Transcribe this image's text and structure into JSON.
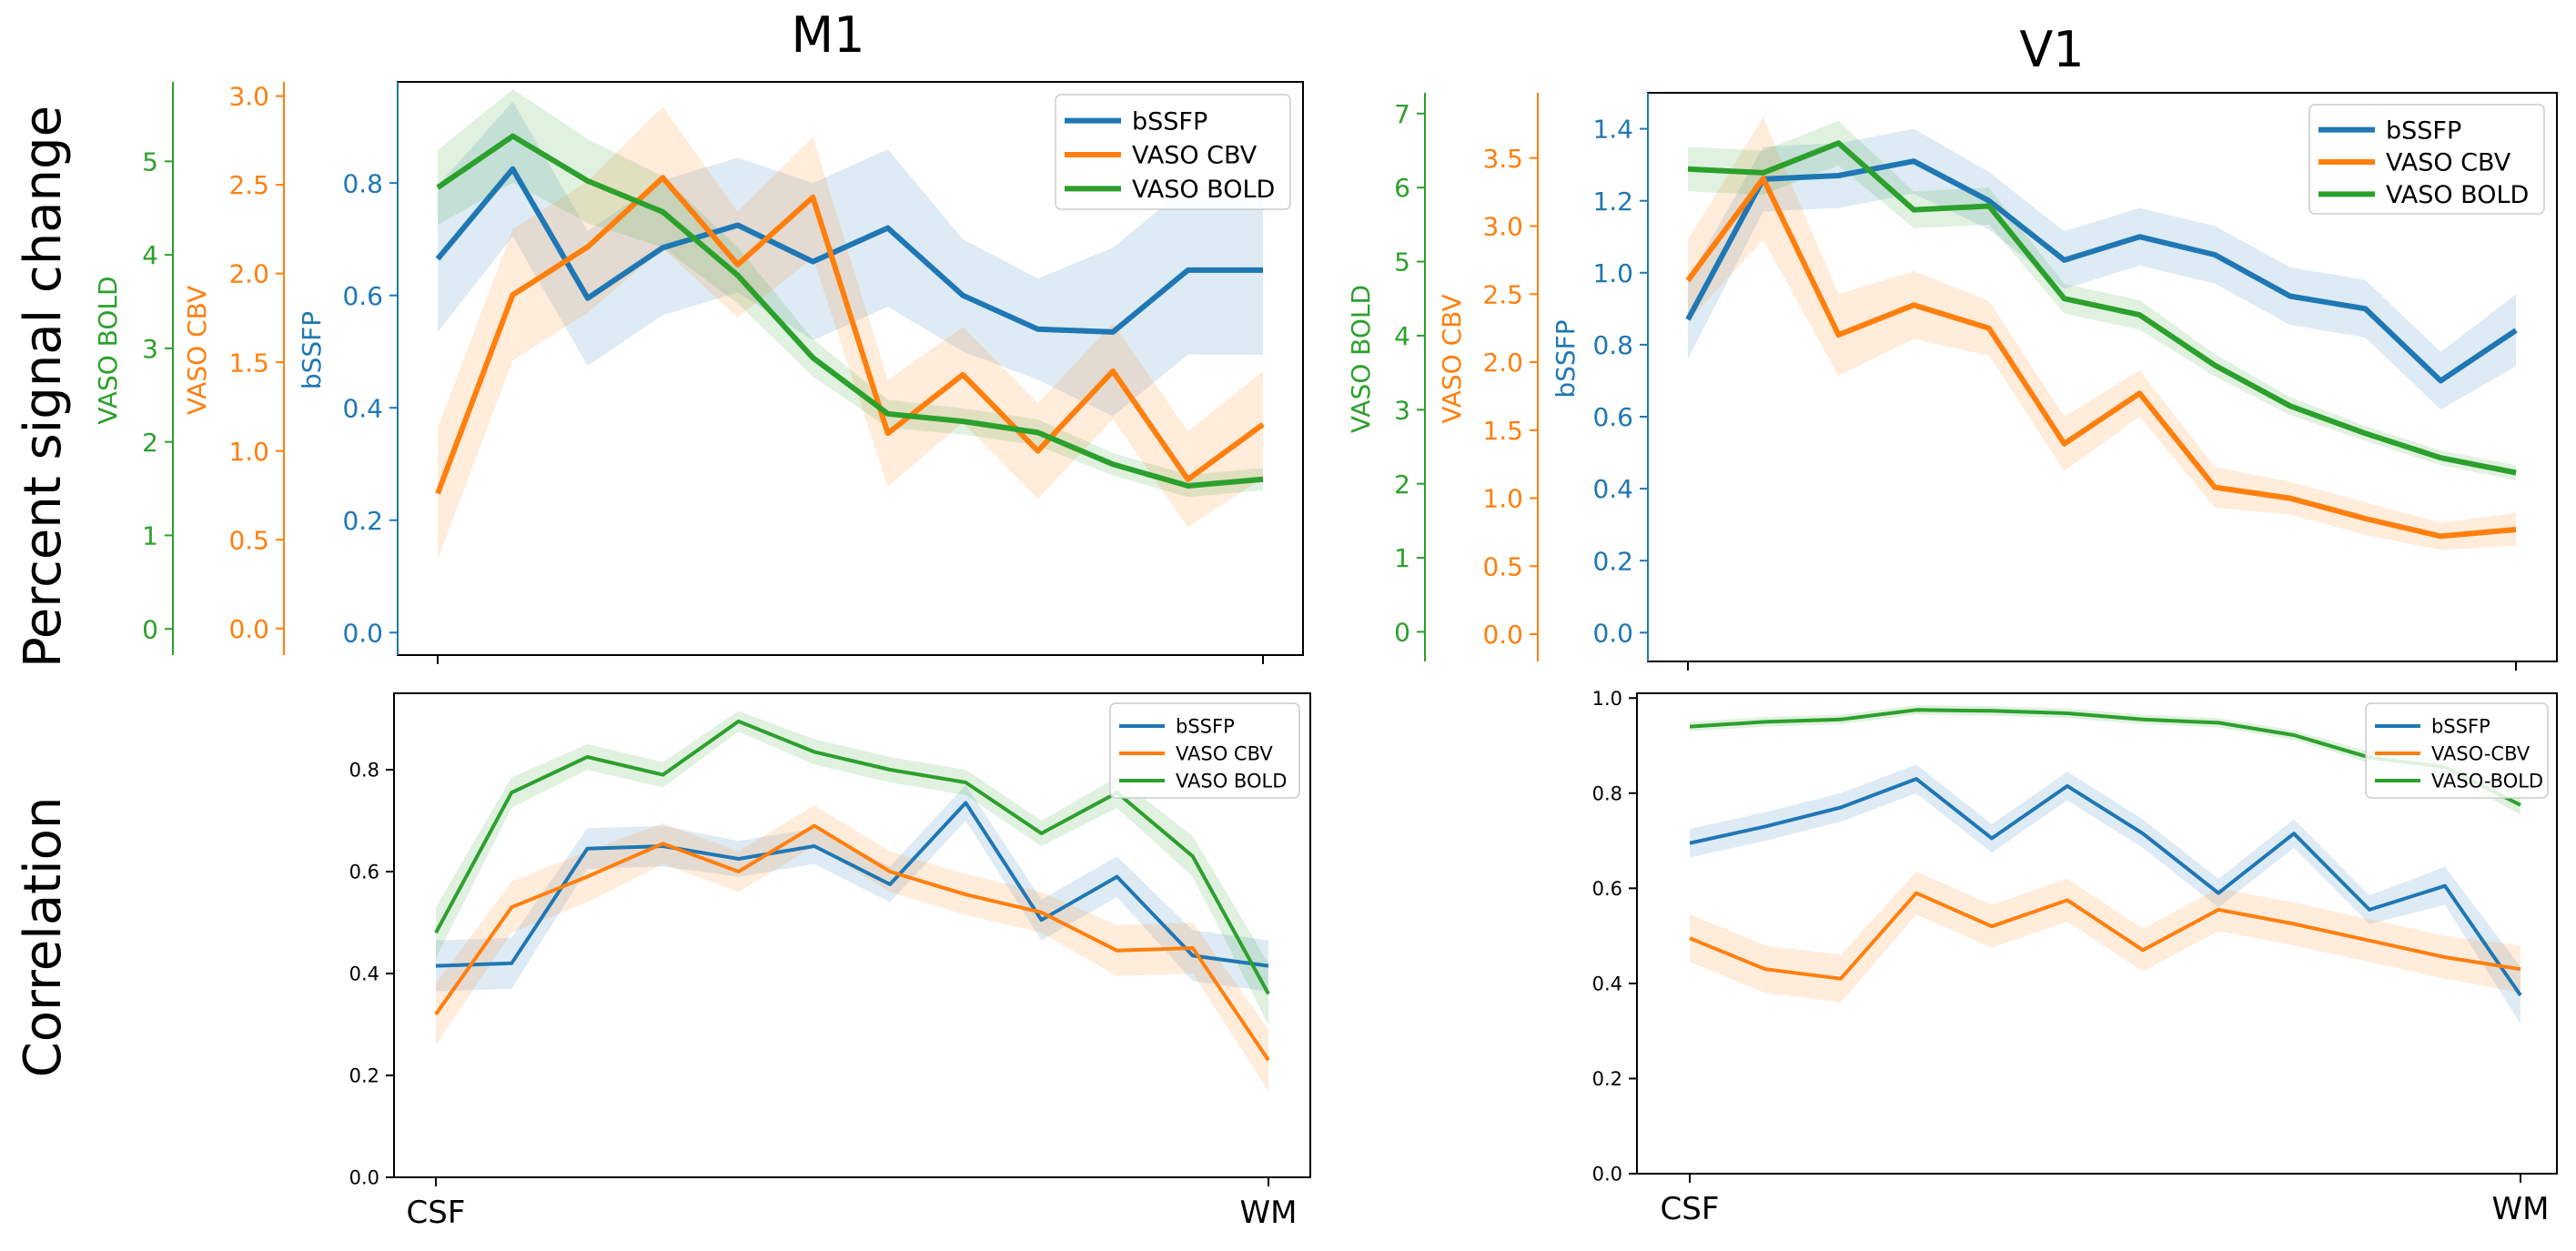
{
  "colors": {
    "bssfp": "#1f77b4",
    "cbv": "#ff7f0e",
    "bold": "#2ca02c",
    "text": "#000000"
  },
  "row_labels": {
    "top": "Percent signal change",
    "bottom": "Correlation"
  },
  "column_titles": {
    "m1": "M1",
    "v1": "V1"
  },
  "chart_data": [
    {
      "id": "m1_psc",
      "type": "line",
      "x": [
        1,
        2,
        3,
        4,
        5,
        6,
        7,
        8,
        9,
        10,
        11,
        12
      ],
      "x_tick_labels": [
        "",
        ""
      ],
      "legend": "top-right",
      "axes": [
        {
          "label": "bSSFP",
          "color": "#1f77b4",
          "ylim": [
            -0.04,
            0.98
          ],
          "ticks": [
            "0.0",
            "0.2",
            "0.4",
            "0.6",
            "0.8"
          ]
        },
        {
          "label": "VASO CBV",
          "color": "#ff7f0e",
          "ylim": [
            -0.15,
            3.08
          ],
          "ticks": [
            "0.0",
            "0.5",
            "1.0",
            "1.5",
            "2.0",
            "2.5",
            "3.0"
          ]
        },
        {
          "label": "VASO BOLD",
          "color": "#2ca02c",
          "ylim": [
            -0.28,
            5.85
          ],
          "ticks": [
            "0",
            "1",
            "2",
            "3",
            "4",
            "5"
          ]
        }
      ],
      "series": [
        {
          "name": "bSSFP",
          "axis": 0,
          "color": "#1f77b4",
          "values": [
            0.665,
            0.825,
            0.595,
            0.685,
            0.725,
            0.66,
            0.72,
            0.6,
            0.54,
            0.535,
            0.645,
            0.645
          ],
          "band": [
            0.13,
            0.12,
            0.12,
            0.12,
            0.12,
            0.14,
            0.14,
            0.1,
            0.09,
            0.15,
            0.15,
            0.15
          ]
        },
        {
          "name": "VASO CBV",
          "axis": 1,
          "color": "#ff7f0e",
          "values": [
            0.76,
            1.88,
            2.15,
            2.54,
            2.05,
            2.43,
            1.1,
            1.43,
            1.0,
            1.45,
            0.84,
            1.15
          ],
          "band": [
            0.37,
            0.37,
            0.37,
            0.4,
            0.3,
            0.34,
            0.3,
            0.27,
            0.27,
            0.27,
            0.27,
            0.3
          ]
        },
        {
          "name": "VASO BOLD",
          "axis": 2,
          "color": "#2ca02c",
          "values": [
            4.72,
            5.27,
            4.79,
            4.46,
            3.78,
            2.9,
            2.3,
            2.22,
            2.1,
            1.76,
            1.53,
            1.6
          ],
          "band": [
            0.4,
            0.5,
            0.45,
            0.38,
            0.3,
            0.2,
            0.15,
            0.14,
            0.14,
            0.12,
            0.12,
            0.12
          ]
        }
      ]
    },
    {
      "id": "v1_psc",
      "type": "line",
      "x": [
        1,
        2,
        3,
        4,
        5,
        6,
        7,
        8,
        9,
        10,
        11,
        12
      ],
      "x_tick_labels": [
        "",
        ""
      ],
      "legend": "top-right",
      "axes": [
        {
          "label": "bSSFP",
          "color": "#1f77b4",
          "ylim": [
            -0.08,
            1.5
          ],
          "ticks": [
            "0.0",
            "0.2",
            "0.4",
            "0.6",
            "0.8",
            "1.0",
            "1.2",
            "1.4"
          ]
        },
        {
          "label": "VASO CBV",
          "color": "#ff7f0e",
          "ylim": [
            -0.2,
            3.98
          ],
          "ticks": [
            "0.0",
            "0.5",
            "1.0",
            "1.5",
            "2.0",
            "2.5",
            "3.0",
            "3.5"
          ]
        },
        {
          "label": "VASO BOLD",
          "color": "#2ca02c",
          "ylim": [
            -0.4,
            7.28
          ],
          "ticks": [
            "0",
            "1",
            "2",
            "3",
            "4",
            "5",
            "6",
            "7"
          ]
        }
      ],
      "series": [
        {
          "name": "bSSFP",
          "axis": 0,
          "color": "#1f77b4",
          "values": [
            0.87,
            1.26,
            1.27,
            1.31,
            1.2,
            1.035,
            1.1,
            1.05,
            0.935,
            0.9,
            0.7,
            0.84
          ],
          "band": [
            0.11,
            0.09,
            0.09,
            0.09,
            0.08,
            0.08,
            0.08,
            0.08,
            0.08,
            0.08,
            0.08,
            0.1
          ]
        },
        {
          "name": "VASO CBV",
          "axis": 1,
          "color": "#ff7f0e",
          "values": [
            2.6,
            3.35,
            2.2,
            2.42,
            2.25,
            1.4,
            1.77,
            1.08,
            1.0,
            0.85,
            0.72,
            0.77
          ],
          "band": [
            0.3,
            0.45,
            0.3,
            0.25,
            0.2,
            0.2,
            0.17,
            0.15,
            0.12,
            0.12,
            0.1,
            0.12
          ]
        },
        {
          "name": "VASO BOLD",
          "axis": 2,
          "color": "#2ca02c",
          "values": [
            6.25,
            6.2,
            6.6,
            5.7,
            5.75,
            4.5,
            4.28,
            3.6,
            3.05,
            2.68,
            2.35,
            2.15
          ],
          "band": [
            0.3,
            0.3,
            0.3,
            0.25,
            0.25,
            0.2,
            0.2,
            0.15,
            0.12,
            0.1,
            0.1,
            0.1
          ]
        }
      ]
    },
    {
      "id": "m1_corr",
      "type": "line",
      "x": [
        1,
        2,
        3,
        4,
        5,
        6,
        7,
        8,
        9,
        10,
        11,
        12
      ],
      "x_tick_labels": [
        "CSF",
        "WM"
      ],
      "legend": "top-right",
      "axes": [
        {
          "label": "",
          "color": "#000000",
          "ylim": [
            0.0,
            0.95
          ],
          "ticks": [
            "0.0",
            "0.2",
            "0.4",
            "0.6",
            "0.8"
          ]
        }
      ],
      "series": [
        {
          "name": "bSSFP",
          "axis": 0,
          "color": "#1f77b4",
          "values": [
            0.415,
            0.42,
            0.645,
            0.65,
            0.625,
            0.65,
            0.575,
            0.735,
            0.505,
            0.59,
            0.435,
            0.415
          ],
          "band": [
            0.05,
            0.05,
            0.04,
            0.04,
            0.035,
            0.035,
            0.035,
            0.035,
            0.04,
            0.04,
            0.05,
            0.05
          ]
        },
        {
          "name": "VASO CBV",
          "axis": 0,
          "color": "#ff7f0e",
          "values": [
            0.32,
            0.53,
            0.59,
            0.655,
            0.6,
            0.69,
            0.6,
            0.555,
            0.52,
            0.445,
            0.45,
            0.23
          ],
          "band": [
            0.06,
            0.05,
            0.05,
            0.04,
            0.04,
            0.04,
            0.04,
            0.04,
            0.04,
            0.05,
            0.05,
            0.06
          ]
        },
        {
          "name": "VASO BOLD",
          "axis": 0,
          "color": "#2ca02c",
          "values": [
            0.48,
            0.755,
            0.825,
            0.79,
            0.895,
            0.835,
            0.8,
            0.775,
            0.675,
            0.755,
            0.63,
            0.36
          ],
          "band": [
            0.05,
            0.03,
            0.025,
            0.025,
            0.02,
            0.025,
            0.025,
            0.025,
            0.025,
            0.03,
            0.04,
            0.06
          ]
        }
      ]
    },
    {
      "id": "v1_corr",
      "type": "line",
      "x": [
        1,
        2,
        3,
        4,
        5,
        6,
        7,
        8,
        9,
        10,
        11,
        12
      ],
      "x_tick_labels": [
        "CSF",
        "WM"
      ],
      "legend": "top-right",
      "axes": [
        {
          "label": "",
          "color": "#000000",
          "ylim": [
            0.0,
            1.01
          ],
          "ticks": [
            "0.0",
            "0.2",
            "0.4",
            "0.6",
            "0.8",
            "1.0"
          ]
        }
      ],
      "series": [
        {
          "name": "bSSFP",
          "axis": 0,
          "color": "#1f77b4",
          "values": [
            0.695,
            0.73,
            0.77,
            0.83,
            0.705,
            0.815,
            0.715,
            0.59,
            0.715,
            0.555,
            0.605,
            0.375
          ],
          "band": [
            0.03,
            0.03,
            0.03,
            0.03,
            0.03,
            0.03,
            0.03,
            0.03,
            0.03,
            0.03,
            0.04,
            0.06
          ]
        },
        {
          "name": "VASO-CBV",
          "axis": 0,
          "color": "#ff7f0e",
          "values": [
            0.495,
            0.43,
            0.41,
            0.59,
            0.52,
            0.575,
            0.47,
            0.555,
            0.525,
            0.49,
            0.455,
            0.43
          ],
          "band": [
            0.05,
            0.05,
            0.05,
            0.045,
            0.045,
            0.045,
            0.045,
            0.045,
            0.045,
            0.045,
            0.045,
            0.05
          ]
        },
        {
          "name": "VASO-BOLD",
          "axis": 0,
          "color": "#2ca02c",
          "values": [
            0.94,
            0.95,
            0.955,
            0.975,
            0.973,
            0.968,
            0.955,
            0.948,
            0.922,
            0.875,
            0.855,
            0.775
          ],
          "band": [
            0.01,
            0.01,
            0.01,
            0.01,
            0.01,
            0.01,
            0.01,
            0.01,
            0.01,
            0.012,
            0.015,
            0.02
          ]
        }
      ]
    }
  ]
}
